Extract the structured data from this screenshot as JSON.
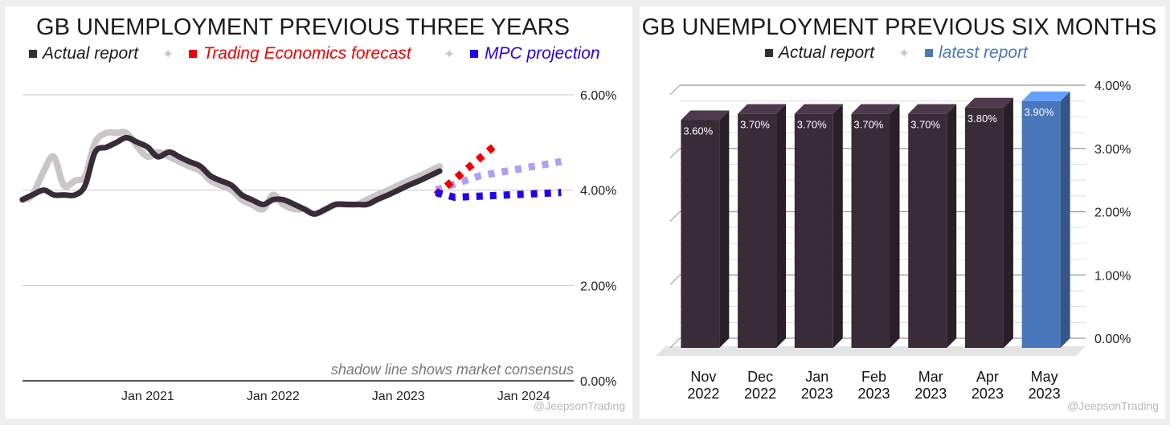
{
  "colors": {
    "actual": "#3a2b38",
    "consensus": "#c9c5c8",
    "te_forecast": "#ee0000",
    "mpc": "#2200ee",
    "mpc_light": "#aaa2f2",
    "latest": "#4a77bb",
    "grid": "#c8c8c8",
    "sparkle": "#c8c8c8"
  },
  "chart_data": [
    {
      "type": "line",
      "title": "GB UNEMPLOYMENT PREVIOUS THREE YEARS",
      "legend": [
        "Actual report",
        "Trading Economics forecast",
        "MPC projection"
      ],
      "legend_sparkle": "✦",
      "annotation": "shadow line shows market consensus",
      "watermark": "@JeepsonTrading",
      "xlim": [
        2020.0,
        2024.4
      ],
      "ylim": [
        0,
        6
      ],
      "ytick_values": [
        0,
        2,
        4,
        6
      ],
      "ytick_labels": [
        "0.00%",
        "2.00%",
        "4.00%",
        "6.00%"
      ],
      "xtick_values": [
        2021,
        2022,
        2023,
        2024
      ],
      "xtick_labels": [
        "Jan 2021",
        "Jan 2022",
        "Jan 2023",
        "Jan 2024"
      ],
      "series": [
        {
          "name": "Actual report",
          "style": "solid",
          "x": [
            2020.0,
            2020.08,
            2020.17,
            2020.25,
            2020.33,
            2020.42,
            2020.5,
            2020.58,
            2020.67,
            2020.75,
            2020.83,
            2020.92,
            2021.0,
            2021.08,
            2021.17,
            2021.25,
            2021.33,
            2021.42,
            2021.5,
            2021.58,
            2021.67,
            2021.75,
            2021.83,
            2021.92,
            2022.0,
            2022.08,
            2022.17,
            2022.25,
            2022.33,
            2022.42,
            2022.5,
            2022.58,
            2022.67,
            2022.75,
            2022.83,
            2022.92,
            2023.0,
            2023.08,
            2023.17,
            2023.25,
            2023.33
          ],
          "values": [
            3.8,
            3.9,
            4.0,
            3.9,
            3.9,
            3.9,
            4.1,
            4.8,
            4.9,
            5.0,
            5.1,
            5.0,
            4.9,
            4.7,
            4.8,
            4.7,
            4.6,
            4.5,
            4.3,
            4.2,
            4.1,
            3.9,
            3.8,
            3.7,
            3.8,
            3.8,
            3.7,
            3.6,
            3.5,
            3.6,
            3.7,
            3.7,
            3.7,
            3.7,
            3.8,
            3.9,
            4.0,
            4.1,
            4.2,
            4.3,
            4.4
          ]
        },
        {
          "name": "Market consensus",
          "style": "shadow",
          "x": [
            2020.0,
            2020.08,
            2020.17,
            2020.25,
            2020.33,
            2020.42,
            2020.5,
            2020.58,
            2020.67,
            2020.75,
            2020.83,
            2020.92,
            2021.0,
            2021.08,
            2021.17,
            2021.25,
            2021.33,
            2021.42,
            2021.5,
            2021.58,
            2021.67,
            2021.75,
            2021.83,
            2021.92,
            2022.0,
            2022.08,
            2022.17,
            2022.25,
            2022.33,
            2022.42,
            2022.5,
            2022.58,
            2022.67,
            2022.75,
            2022.83,
            2022.92,
            2023.0,
            2023.08,
            2023.17,
            2023.25,
            2023.33
          ],
          "values": [
            3.8,
            3.9,
            4.4,
            4.7,
            4.1,
            4.2,
            4.3,
            5.0,
            5.2,
            5.2,
            5.2,
            4.9,
            4.7,
            4.8,
            4.7,
            4.6,
            4.5,
            4.4,
            4.2,
            4.1,
            4.0,
            3.8,
            3.7,
            3.6,
            3.9,
            3.7,
            3.6,
            3.6,
            3.5,
            3.6,
            3.7,
            3.7,
            3.7,
            3.8,
            3.9,
            4.0,
            4.1,
            4.2,
            4.3,
            4.4,
            4.5
          ]
        },
        {
          "name": "Trading Economics forecast",
          "style": "dotted",
          "x": [
            2023.3,
            2023.55,
            2023.8
          ],
          "values": [
            3.9,
            4.45,
            5.0
          ]
        },
        {
          "name": "MPC projection (upper)",
          "style": "dotted-light",
          "x": [
            2023.3,
            2023.65,
            2024.3
          ],
          "values": [
            4.0,
            4.3,
            4.6
          ]
        },
        {
          "name": "MPC projection",
          "style": "dotted",
          "x": [
            2023.3,
            2023.45,
            2024.3
          ],
          "values": [
            3.95,
            3.85,
            3.95
          ]
        }
      ]
    },
    {
      "type": "bar",
      "title": "GB UNEMPLOYMENT PREVIOUS SIX MONTHS",
      "legend": [
        "Actual report",
        "latest report"
      ],
      "legend_sparkle": "✦",
      "watermark": "@JeepsonTrading",
      "ylim": [
        0,
        4
      ],
      "ytick_values": [
        0,
        1,
        2,
        3,
        4
      ],
      "ytick_labels": [
        "0.00%",
        "1.00%",
        "2.00%",
        "3.00%",
        "4.00%"
      ],
      "categories": [
        "Nov 2022",
        "Dec 2022",
        "Jan 2023",
        "Feb 2023",
        "Mar 2023",
        "Apr 2023",
        "May 2023"
      ],
      "category_lines": [
        [
          "Nov",
          "2022"
        ],
        [
          "Dec",
          "2022"
        ],
        [
          "Jan",
          "2023"
        ],
        [
          "Feb",
          "2023"
        ],
        [
          "Mar",
          "2023"
        ],
        [
          "Apr",
          "2023"
        ],
        [
          "May",
          "2023"
        ]
      ],
      "values": [
        3.6,
        3.7,
        3.7,
        3.7,
        3.7,
        3.8,
        3.9
      ],
      "data_labels": [
        "3.60%",
        "3.70%",
        "3.70%",
        "3.70%",
        "3.70%",
        "3.80%",
        "3.90%"
      ],
      "latest_index": 6
    }
  ]
}
